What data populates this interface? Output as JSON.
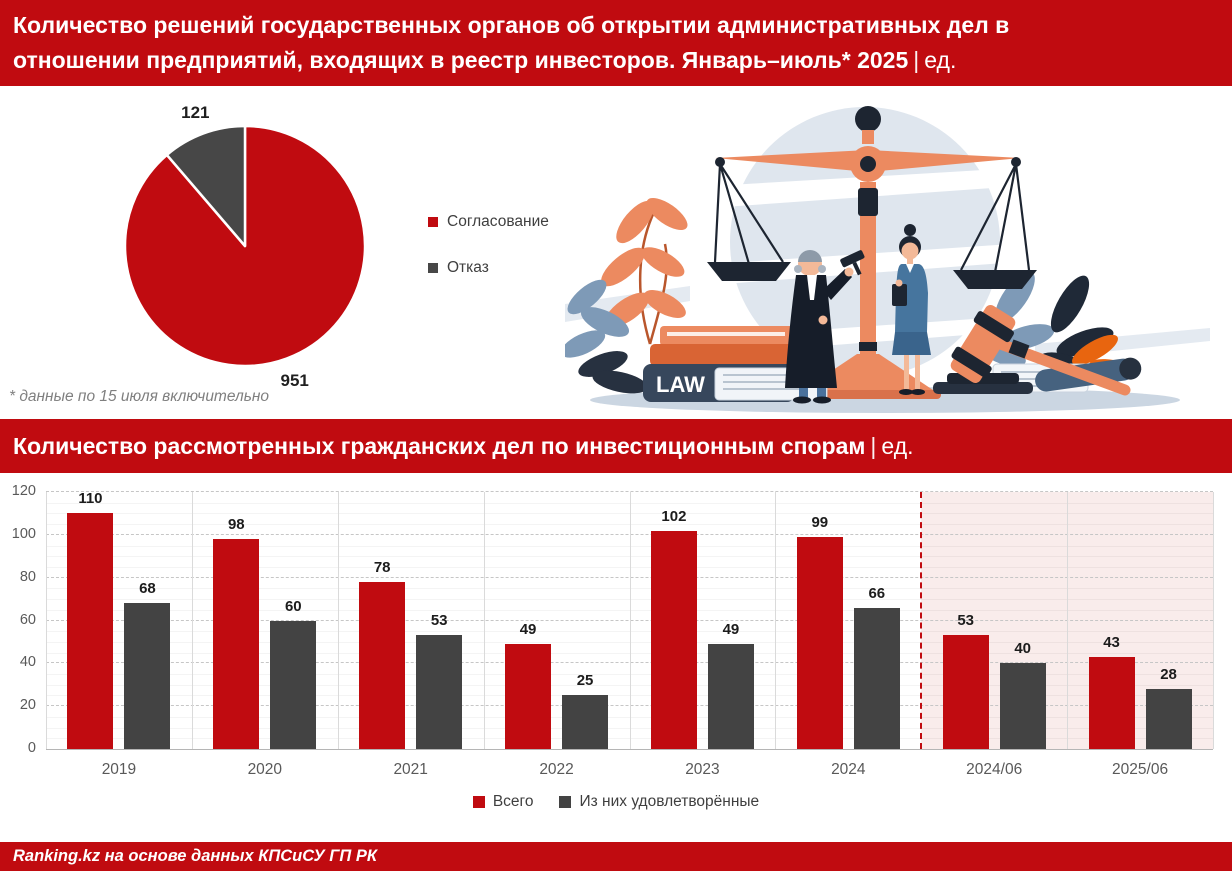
{
  "header": {
    "title": "Количество решений государственных органов об открытии административных дел в отношении предприятий, входящих в реестр инвесторов. Январь–июль* 2025",
    "separator": "|",
    "unit": "ед."
  },
  "section2_header": {
    "title": "Количество рассмотренных гражданских дел по инвестиционным спорам",
    "separator": "|",
    "unit": "ед."
  },
  "footnote": "* данные по 15 июля включительно",
  "footer_source": "Ranking.kz на основе данных КПСиСУ ГП РК",
  "illustration": {
    "book_label": "LAW"
  },
  "colors": {
    "brand_red": "#c00b10",
    "dark_gray": "#434343",
    "pie_gray": "#474747",
    "highlight_pink": "#f9eceb",
    "axis_text": "#595959"
  },
  "chart_data": [
    {
      "type": "pie",
      "title": "Количество решений государственных органов об открытии административных дел в отношении предприятий, входящих в реестр инвесторов. Январь–июль* 2025 | ед.",
      "labels": [
        "Согласование",
        "Отказ"
      ],
      "values": [
        951,
        121
      ],
      "colors": [
        "#c00b10",
        "#474747"
      ],
      "legend_position": "right",
      "footnote": "* данные по 15 июля включительно"
    },
    {
      "type": "bar",
      "title": "Количество рассмотренных гражданских дел по инвестиционным спорам | ед.",
      "categories": [
        "2019",
        "2020",
        "2021",
        "2022",
        "2023",
        "2024",
        "2024/06",
        "2025/06"
      ],
      "series": [
        {
          "name": "Всего",
          "color": "#c00b10",
          "values": [
            110,
            98,
            78,
            49,
            102,
            99,
            53,
            43
          ]
        },
        {
          "name": "Из них удовлетворённые",
          "color": "#434343",
          "values": [
            68,
            60,
            53,
            25,
            49,
            66,
            40,
            28
          ]
        }
      ],
      "ylim": [
        0,
        120
      ],
      "yticks": [
        0,
        20,
        40,
        60,
        80,
        100,
        120
      ],
      "grid": "dashed-horizontal",
      "legend_position": "bottom",
      "highlight": {
        "categories": [
          "2024/06",
          "2025/06"
        ],
        "background": "#f9eceb",
        "divider_style": "red-dashed"
      }
    }
  ]
}
